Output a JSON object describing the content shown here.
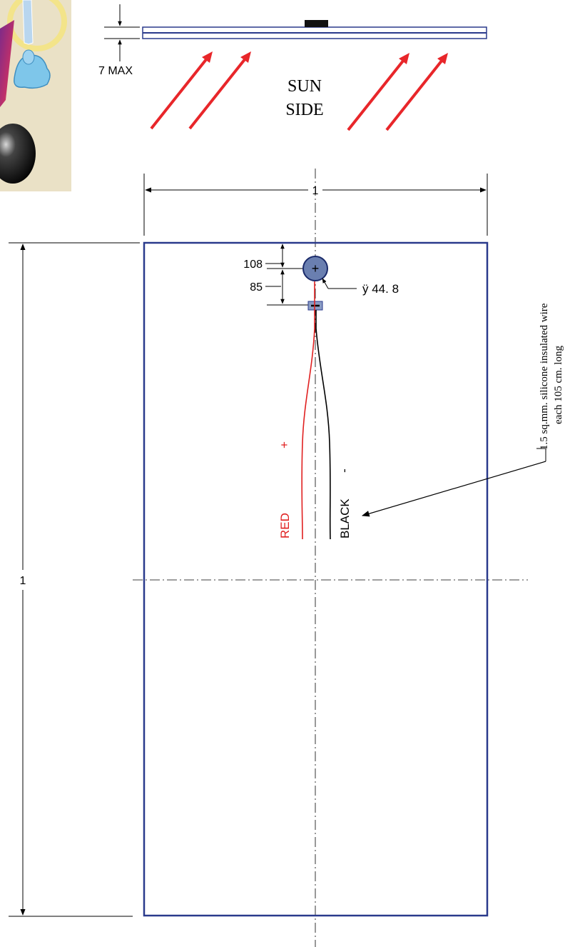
{
  "thickness": {
    "label": "7 MAX"
  },
  "sun_side": {
    "line1": "SUN",
    "line2": "SIDE"
  },
  "dimensions": {
    "width_label": "1",
    "height_label": "1",
    "terminal_offset_label": "108",
    "terminal_spacing_label": "85",
    "terminal_diameter_label": "ÿ 44. 8"
  },
  "terminal": {
    "plus_symbol": "+"
  },
  "wires": {
    "red_label": "RED",
    "red_sign": "+",
    "black_label": "BLACK",
    "black_sign": "-"
  },
  "wire_note": {
    "line1": "1.5 sq.mm. silicone insulated wire",
    "line2": "each 105 cm. long"
  },
  "colors": {
    "panel_outline": "#2a3a8c",
    "red_wire": "#e02020",
    "arrow_red": "#e8262a",
    "terminal_fill": "#6a7fb0",
    "clip_background": "#e9dfc2"
  }
}
